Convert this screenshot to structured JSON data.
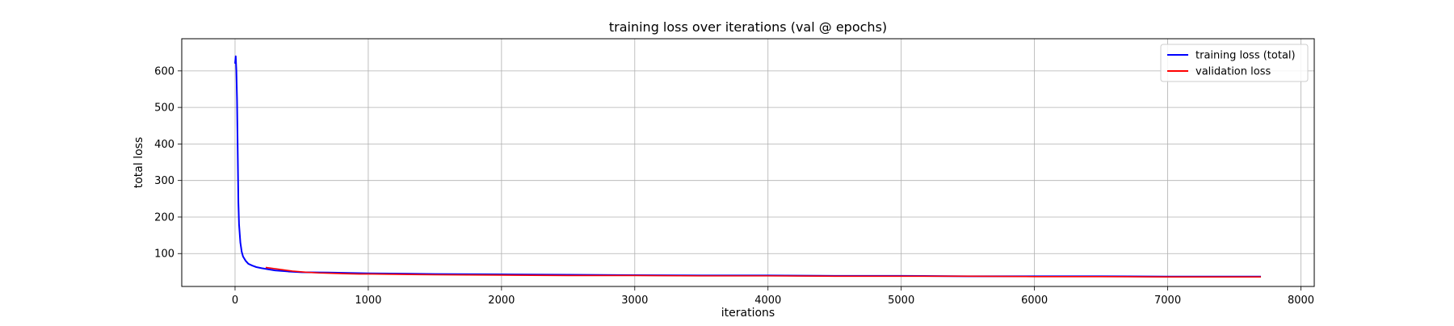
{
  "chart_data": {
    "type": "line",
    "title": "training loss over iterations (val @ epochs)",
    "xlabel": "iterations",
    "ylabel": "total loss",
    "xlim": [
      -400,
      8100
    ],
    "ylim": [
      10,
      688
    ],
    "xticks": [
      0,
      1000,
      2000,
      3000,
      4000,
      5000,
      6000,
      7000,
      8000
    ],
    "yticks": [
      100,
      200,
      300,
      400,
      500,
      600
    ],
    "grid": true,
    "legend_position": "top-right",
    "series": [
      {
        "name": "training loss (total)",
        "color": "#0000ff",
        "x": [
          0,
          5,
          10,
          15,
          20,
          25,
          30,
          40,
          50,
          60,
          80,
          100,
          130,
          160,
          200,
          250,
          300,
          400,
          500,
          700,
          1000,
          1500,
          2000,
          2500,
          3000,
          3500,
          4000,
          4500,
          5000,
          5500,
          6000,
          6500,
          7000,
          7500,
          7700
        ],
        "y": [
          620,
          640,
          600,
          520,
          380,
          240,
          180,
          130,
          105,
          92,
          80,
          72,
          67,
          63,
          60,
          57,
          54,
          51,
          49,
          48,
          46,
          44,
          43,
          42,
          41,
          40,
          40,
          39,
          39,
          38,
          38,
          38,
          37,
          37,
          37
        ]
      },
      {
        "name": "validation loss",
        "color": "#ff0000",
        "x": [
          230,
          330,
          430,
          530,
          630,
          730,
          830,
          930,
          1030,
          1500,
          2000,
          2500,
          3000,
          3500,
          4000,
          4500,
          5000,
          5500,
          6000,
          6500,
          7000,
          7500,
          7700
        ],
        "y": [
          62,
          57,
          52,
          49,
          47,
          46,
          45,
          44,
          44,
          42,
          41,
          40,
          40,
          39,
          39,
          38,
          38,
          38,
          37,
          37,
          36,
          36,
          36
        ]
      }
    ]
  }
}
